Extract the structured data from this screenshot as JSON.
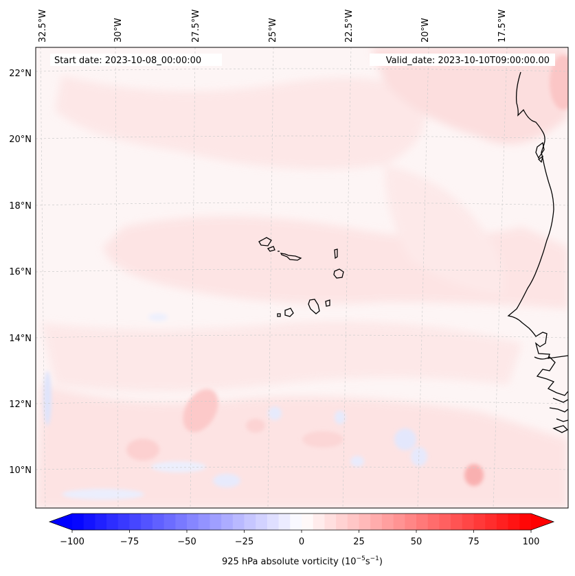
{
  "map": {
    "start_date_label": "Start date: 2023-10-08_00:00:00",
    "valid_date_label": "Valid_date: 2023-10-10T09:00:00.00",
    "lon_labels": [
      "32.5°W",
      "30°W",
      "27.5°W",
      "25°W",
      "22.5°W",
      "20°W",
      "17.5°W"
    ],
    "lat_labels": [
      "22°N",
      "20°N",
      "18°N",
      "16°N",
      "14°N",
      "12°N",
      "10°N"
    ],
    "field": "925 hPa absolute vorticity",
    "background_color": "#fdf4f4"
  },
  "colorbar": {
    "label": "925 hPa absolute vorticity (10",
    "label_exp1": "−5",
    "label_mid": "s",
    "label_exp2": "−1",
    "label_end": ")",
    "ticks": [
      "−100",
      "−75",
      "−50",
      "−25",
      "0",
      "25",
      "50",
      "75",
      "100"
    ],
    "min": -100,
    "max": 100,
    "step": 5,
    "low_color": "#0000ff",
    "high_color": "#ff0000"
  }
}
